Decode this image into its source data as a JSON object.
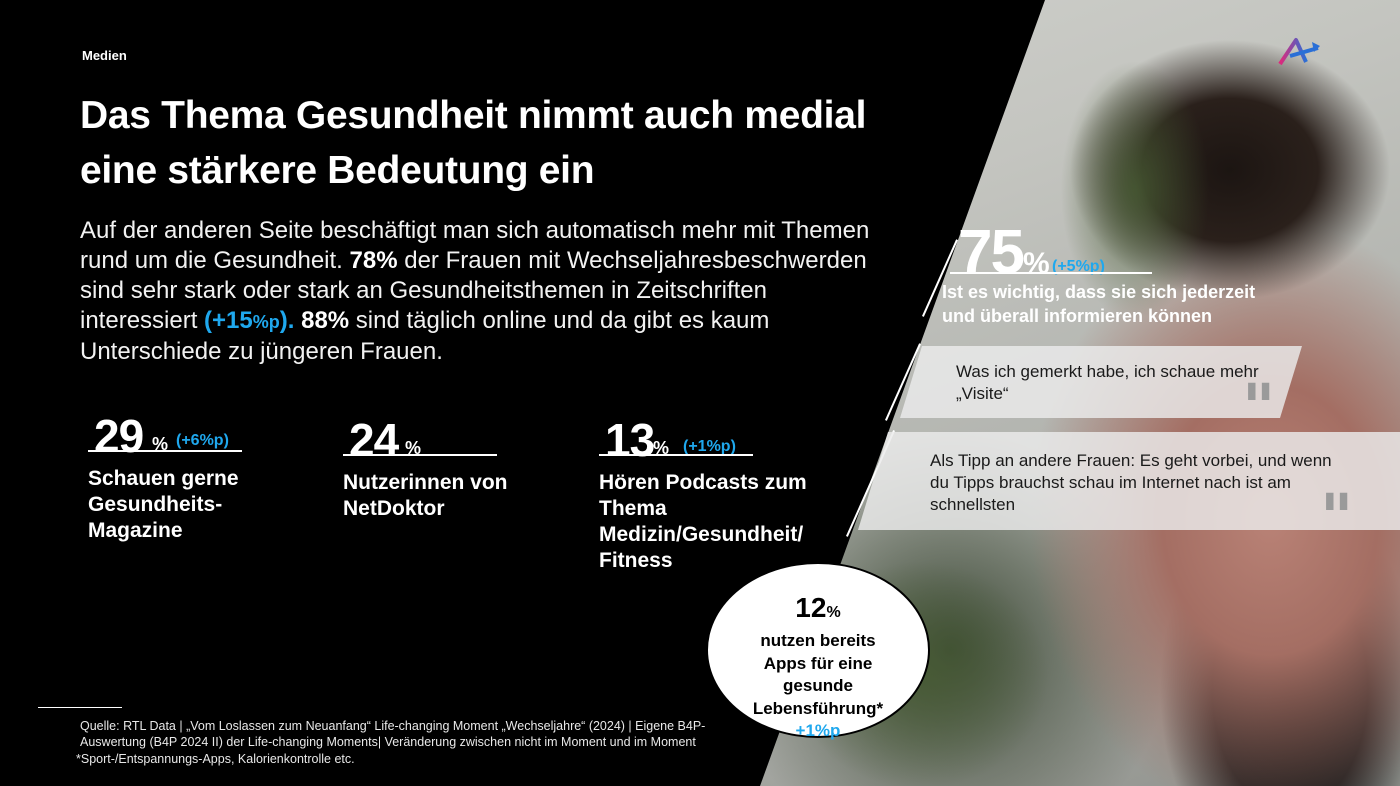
{
  "section": "Medien",
  "title_line1": "Das Thema Gesundheit nimmt auch medial",
  "title_line2": "eine stärkere Bedeutung ein",
  "intro": {
    "p1": "Auf der anderen Seite beschäftigt man sich automatisch mehr mit Themen rund um die Gesundheit. ",
    "b1": "78%",
    "p2": " der Frauen mit Wechseljahresbeschwerden sind sehr stark oder stark an Gesundheitsthemen in Zeitschriften interessiert ",
    "hl_open": "(+15",
    "hl_unit": "%p",
    "hl_close": ").",
    "b2": " 88%",
    "p3": " sind täglich online und da gibt es kaum Unterschiede zu jüngeren Frauen."
  },
  "stats": [
    {
      "value": "29",
      "unit": "%",
      "delta": "(+6%p)",
      "desc": "Schauen gerne Gesundheits-Magazine"
    },
    {
      "value": "24",
      "unit": "%",
      "delta": "",
      "desc": "Nutzerinnen von NetDoktor"
    },
    {
      "value": "13",
      "unit": "%",
      "delta": "(+1%p)",
      "desc": "Hören Podcasts zum Thema Medizin/Gesundheit/ Fitness"
    }
  ],
  "bubble": {
    "value": "12",
    "unit": "%",
    "text": "nutzen bereits Apps für eine gesunde Lebensführung*",
    "delta": "+1%p"
  },
  "highlight": {
    "value": "75",
    "unit": "%",
    "delta": "(+5%p)",
    "text": "Ist es wichtig, dass sie sich jederzeit und überall informieren können"
  },
  "quotes": [
    {
      "text": "Was ich gemerkt habe, ich schaue mehr „Visite“",
      "mark": "\""
    },
    {
      "text": "Als Tipp an andere Frauen: Es geht vorbei, und wenn du Tipps brauchst schau im Internet nach ist am schnellsten",
      "mark": "\""
    }
  ],
  "source": "Quelle: RTL Data |  „Vom Loslassen zum Neuanfang“ Life-changing Moment „Wechseljahre“ (2024) | Eigene B4P-Auswertung (B4P 2024 II) der Life-changing Moments| Veränderung zwischen nicht im Moment und im Moment",
  "footnote": "*Sport-/Entspannungs-Apps, Kalorienkontrolle etc.",
  "colors": {
    "accent": "#1fa8ee",
    "background": "#000000",
    "logo_pink": "#e0287a",
    "logo_blue": "#2a6fd6"
  },
  "logo_icon": "brand-logo-a-icon"
}
